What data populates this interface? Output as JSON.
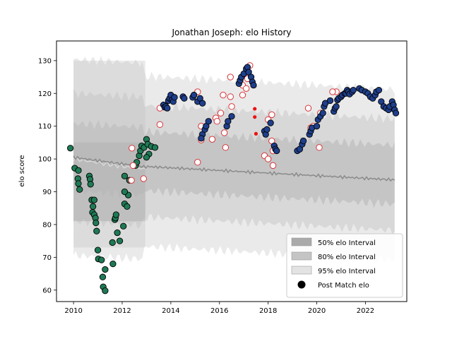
{
  "chart_data": {
    "type": "scatter",
    "title": "Jonathan Joseph: elo History",
    "xlabel": "",
    "ylabel": "elo score",
    "xlim": [
      2009.3,
      2023.7
    ],
    "ylim": [
      56.5,
      136
    ],
    "xticks": [
      2010,
      2012,
      2014,
      2016,
      2018,
      2020,
      2022
    ],
    "yticks": [
      60,
      70,
      80,
      90,
      100,
      110,
      120,
      130
    ],
    "grid": false,
    "legend_position": "lower-right",
    "legend": [
      {
        "label": "50% elo Interval",
        "color": "#aaaaaa"
      },
      {
        "label": "80% elo Interval",
        "color": "#c4c4c4"
      },
      {
        "label": "95% elo Interval",
        "color": "#e3e3e3"
      },
      {
        "label": "Post Match elo",
        "color": "#000000"
      }
    ],
    "colors": {
      "early_points": "#1e7a55",
      "later_points": "#1f3f8c",
      "hollow_points": "#d9353a",
      "red_points": "#ee1111",
      "mean_line": "#8a8a8a",
      "mean_line_light": "#d8d8d8"
    },
    "early_points": [
      [
        2009.87,
        103.3
      ],
      [
        2010.05,
        97.2
      ],
      [
        2010.2,
        96.5
      ],
      [
        2010.18,
        94.0
      ],
      [
        2010.2,
        92.5
      ],
      [
        2010.25,
        90.7
      ],
      [
        2010.65,
        94.8
      ],
      [
        2010.68,
        93.8
      ],
      [
        2010.7,
        92.3
      ],
      [
        2010.75,
        87.5
      ],
      [
        2010.8,
        85.5
      ],
      [
        2010.85,
        87.5
      ],
      [
        2010.78,
        83.7
      ],
      [
        2010.85,
        83.0
      ],
      [
        2010.9,
        82.0
      ],
      [
        2010.92,
        80.5
      ],
      [
        2010.95,
        78.0
      ],
      [
        2011.0,
        72.2
      ],
      [
        2011.02,
        69.5
      ],
      [
        2011.15,
        69.2
      ],
      [
        2011.2,
        64.0
      ],
      [
        2011.22,
        61.0
      ],
      [
        2011.3,
        59.8
      ],
      [
        2011.3,
        66.3
      ],
      [
        2011.6,
        74.5
      ],
      [
        2011.62,
        68.0
      ],
      [
        2011.7,
        81.5
      ],
      [
        2011.72,
        82.0
      ],
      [
        2011.75,
        83.0
      ],
      [
        2011.8,
        77.5
      ],
      [
        2011.9,
        75.0
      ],
      [
        2012.05,
        79.5
      ],
      [
        2012.1,
        86.3
      ],
      [
        2012.2,
        85.5
      ],
      [
        2012.25,
        89.0
      ],
      [
        2012.1,
        90.0
      ],
      [
        2012.1,
        94.8
      ],
      [
        2012.3,
        93.5
      ],
      [
        2012.55,
        98.0
      ],
      [
        2012.6,
        99.0
      ],
      [
        2012.7,
        101.0
      ],
      [
        2012.75,
        102.5
      ],
      [
        2012.8,
        104.0
      ],
      [
        2012.9,
        103.5
      ],
      [
        2013.0,
        106.0
      ],
      [
        2013.05,
        104.5
      ],
      [
        2013.1,
        101.5
      ],
      [
        2013.2,
        103.8
      ],
      [
        2013.35,
        103.5
      ],
      [
        2013.0,
        100.5
      ]
    ],
    "later_points": [
      [
        2013.7,
        116.5
      ],
      [
        2013.75,
        115.8
      ],
      [
        2013.8,
        116.0
      ],
      [
        2013.85,
        115.5
      ],
      [
        2013.9,
        117.8
      ],
      [
        2013.95,
        118.5
      ],
      [
        2014.0,
        119.5
      ],
      [
        2014.05,
        118.0
      ],
      [
        2014.1,
        117.5
      ],
      [
        2014.15,
        118.8
      ],
      [
        2014.5,
        119.0
      ],
      [
        2014.55,
        118.5
      ],
      [
        2014.9,
        118.8
      ],
      [
        2014.95,
        119.5
      ],
      [
        2015.1,
        117.5
      ],
      [
        2015.2,
        118.5
      ],
      [
        2015.3,
        117.0
      ],
      [
        2015.3,
        107.5
      ],
      [
        2015.4,
        109.0
      ],
      [
        2015.45,
        110.0
      ],
      [
        2015.55,
        111.5
      ],
      [
        2015.25,
        106.3
      ],
      [
        2016.3,
        110.0
      ],
      [
        2016.35,
        111.5
      ],
      [
        2016.5,
        113.0
      ],
      [
        2016.8,
        123.0
      ],
      [
        2016.85,
        124.0
      ],
      [
        2016.9,
        125.0
      ],
      [
        2017.0,
        126.0
      ],
      [
        2017.1,
        127.5
      ],
      [
        2017.15,
        128.0
      ],
      [
        2017.2,
        126.5
      ],
      [
        2017.3,
        125.0
      ],
      [
        2017.35,
        123.5
      ],
      [
        2017.4,
        122.5
      ],
      [
        2017.85,
        108.5
      ],
      [
        2017.9,
        107.5
      ],
      [
        2017.95,
        109.0
      ],
      [
        2018.1,
        111.0
      ],
      [
        2018.25,
        104.0
      ],
      [
        2018.3,
        103.0
      ],
      [
        2018.35,
        102.5
      ],
      [
        2019.2,
        102.5
      ],
      [
        2019.3,
        103.0
      ],
      [
        2019.4,
        104.5
      ],
      [
        2019.45,
        105.5
      ],
      [
        2019.7,
        107.5
      ],
      [
        2019.75,
        108.5
      ],
      [
        2019.8,
        109.5
      ],
      [
        2020.0,
        110.0
      ],
      [
        2020.05,
        112.0
      ],
      [
        2020.15,
        113.0
      ],
      [
        2020.25,
        114.0
      ],
      [
        2020.3,
        116.0
      ],
      [
        2020.35,
        117.0
      ],
      [
        2020.55,
        117.8
      ],
      [
        2020.7,
        114.5
      ],
      [
        2020.75,
        115.5
      ],
      [
        2020.8,
        116.0
      ],
      [
        2020.85,
        118.0
      ],
      [
        2020.9,
        118.5
      ],
      [
        2021.0,
        119.0
      ],
      [
        2021.05,
        119.5
      ],
      [
        2021.15,
        120.0
      ],
      [
        2021.2,
        120.0
      ],
      [
        2021.25,
        121.0
      ],
      [
        2021.3,
        120.5
      ],
      [
        2021.35,
        119.8
      ],
      [
        2021.45,
        120.5
      ],
      [
        2021.5,
        121.0
      ],
      [
        2021.75,
        121.5
      ],
      [
        2021.85,
        121.0
      ],
      [
        2022.0,
        120.5
      ],
      [
        2022.1,
        120.0
      ],
      [
        2022.2,
        119.0
      ],
      [
        2022.3,
        118.5
      ],
      [
        2022.4,
        119.5
      ],
      [
        2022.45,
        120.5
      ],
      [
        2022.55,
        121.0
      ],
      [
        2022.65,
        117.5
      ],
      [
        2022.75,
        116.0
      ],
      [
        2022.85,
        115.5
      ],
      [
        2022.95,
        115.0
      ],
      [
        2023.0,
        116.0
      ],
      [
        2023.1,
        117.5
      ],
      [
        2023.15,
        116.5
      ],
      [
        2023.2,
        115.0
      ],
      [
        2023.25,
        114.0
      ]
    ],
    "hollow_points": [
      [
        2012.4,
        103.3
      ],
      [
        2012.45,
        98.0
      ],
      [
        2012.38,
        93.5
      ],
      [
        2012.88,
        94.0
      ],
      [
        2013.55,
        115.5
      ],
      [
        2013.55,
        110.5
      ],
      [
        2015.1,
        120.5
      ],
      [
        2015.25,
        105.8
      ],
      [
        2015.1,
        99.0
      ],
      [
        2015.25,
        110.0
      ],
      [
        2015.7,
        106.0
      ],
      [
        2015.85,
        112.5
      ],
      [
        2015.9,
        111.5
      ],
      [
        2016.05,
        114.0
      ],
      [
        2016.15,
        119.5
      ],
      [
        2016.2,
        108.0
      ],
      [
        2016.25,
        103.5
      ],
      [
        2016.45,
        119.0
      ],
      [
        2016.5,
        116.0
      ],
      [
        2016.45,
        125.0
      ],
      [
        2016.95,
        119.5
      ],
      [
        2016.95,
        122.5
      ],
      [
        2017.1,
        121.5
      ],
      [
        2017.15,
        124.5
      ],
      [
        2017.25,
        128.5
      ],
      [
        2018.0,
        112.0
      ],
      [
        2017.85,
        101.0
      ],
      [
        2018.0,
        100.0
      ],
      [
        2018.15,
        105.5
      ],
      [
        2018.2,
        98.0
      ],
      [
        2018.2,
        102.5
      ],
      [
        2018.15,
        113.5
      ],
      [
        2019.65,
        115.5
      ],
      [
        2019.75,
        109.5
      ],
      [
        2019.85,
        110.0
      ],
      [
        2020.1,
        103.5
      ],
      [
        2020.15,
        114.0
      ],
      [
        2020.8,
        120.5
      ],
      [
        2020.65,
        120.5
      ]
    ],
    "red_points": [
      [
        2017.45,
        115.3
      ],
      [
        2017.45,
        112.8
      ],
      [
        2017.5,
        107.7
      ]
    ]
  }
}
